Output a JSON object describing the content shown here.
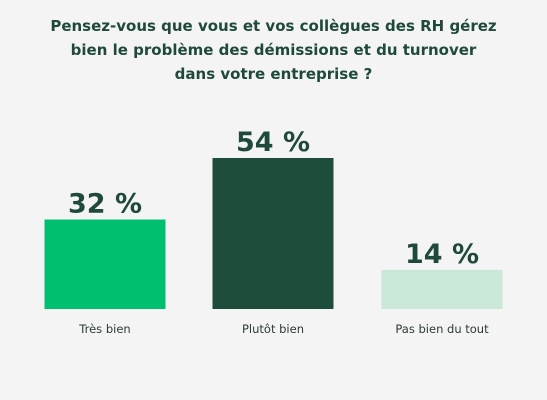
{
  "chart_data": {
    "type": "bar",
    "title_lines": [
      "Pensez-vous que vous et vos collègues des RH gérez",
      "bien le problème des démissions et du turnover",
      "dans votre entreprise ?"
    ],
    "categories": [
      "Très bien",
      "Plutôt bien",
      "Pas bien du tout"
    ],
    "values": [
      32,
      54,
      14
    ],
    "value_labels": [
      "32 %",
      "54 %",
      "14 %"
    ],
    "colors": [
      "#00bf6f",
      "#1f4d3b",
      "#c9e8d8"
    ],
    "ylim": [
      0,
      54
    ],
    "grid": false,
    "legend": "none"
  }
}
